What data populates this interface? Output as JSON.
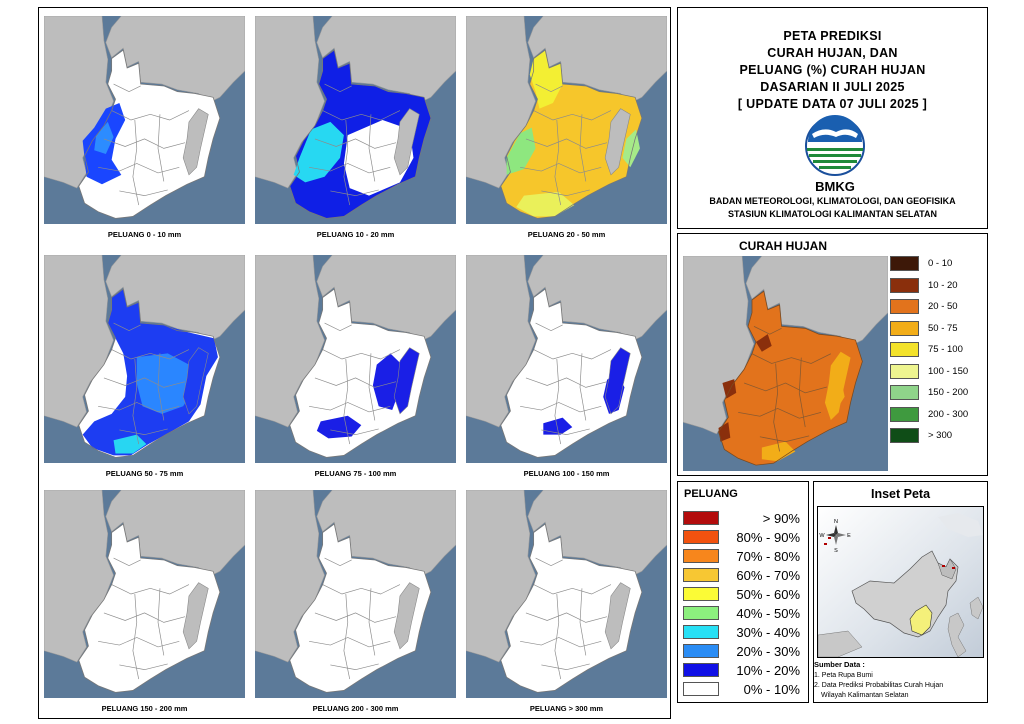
{
  "header": {
    "title_lines": [
      "PETA PREDIKSI",
      "CURAH HUJAN, DAN",
      "PELUANG (%) CURAH HUJAN",
      "DASARIAN II JULI 2025",
      "[ UPDATE DATA 07 JULI 2025 ]"
    ],
    "logo_text": "BMKG",
    "agency_lines": [
      "BADAN METEOROLOGI, KLIMATOLOGI, DAN GEOFISIKA",
      "STASIUN KLIMATOLOGI KALIMANTAN SELATAN"
    ]
  },
  "maps": [
    {
      "caption": "PELUANG 0 - 10 mm",
      "layers": [
        {
          "shape": "w-strip",
          "color": "#1a46ff"
        },
        {
          "shape": "w-patch",
          "color": "#2c8cff"
        }
      ]
    },
    {
      "caption": "PELUANG 10 - 20 mm",
      "layers": [
        {
          "shape": "full",
          "color": "#0f1fe6"
        },
        {
          "shape": "w-cyan",
          "color": "#27d8f2"
        },
        {
          "shape": "c-white",
          "color": "#ffffff"
        }
      ]
    },
    {
      "caption": "PELUANG 20 - 50 mm",
      "layers": [
        {
          "shape": "full",
          "color": "#f6c62b"
        },
        {
          "shape": "n-yellow",
          "color": "#f3ef33"
        },
        {
          "shape": "w-green",
          "color": "#8ee77f"
        },
        {
          "shape": "s-yellow",
          "color": "#eaf05a"
        },
        {
          "shape": "e-green",
          "color": "#a6ea88"
        }
      ]
    },
    {
      "caption": "PELUANG 50 - 75 mm",
      "layers": [
        {
          "shape": "blue-main",
          "color": "#1d3df2"
        },
        {
          "shape": "blue-mid",
          "color": "#2a86ff"
        },
        {
          "shape": "s-cyan",
          "color": "#28d6f2"
        }
      ]
    },
    {
      "caption": "PELUANG 75 - 100 mm",
      "layers": [
        {
          "shape": "e-patch",
          "color": "#1a1fe6"
        },
        {
          "shape": "s-patch",
          "color": "#1a1fe6"
        }
      ]
    },
    {
      "caption": "PELUANG 100 - 150 mm",
      "layers": [
        {
          "shape": "e-patch-s",
          "color": "#1a1fe6"
        },
        {
          "shape": "s-patch-s",
          "color": "#1a1fe6"
        }
      ]
    },
    {
      "caption": "PELUANG 150 - 200 mm",
      "layers": []
    },
    {
      "caption": "PELUANG 200 - 300 mm",
      "layers": []
    },
    {
      "caption": "PELUANG > 300 mm",
      "layers": []
    }
  ],
  "curah_hujan": {
    "title": "CURAH HUJAN",
    "legend": [
      {
        "label": "0 - 10",
        "color": "#3d1808"
      },
      {
        "label": "10 - 20",
        "color": "#8a2f0c"
      },
      {
        "label": "20 - 50",
        "color": "#e2731c"
      },
      {
        "label": "50 - 75",
        "color": "#f2ad18"
      },
      {
        "label": "75 - 100",
        "color": "#f3e22a"
      },
      {
        "label": "100 - 150",
        "color": "#eef590"
      },
      {
        "label": "150 - 200",
        "color": "#8fd48a"
      },
      {
        "label": "200 - 300",
        "color": "#3f9a3f"
      },
      {
        "label": "> 300",
        "color": "#0f4d17"
      }
    ]
  },
  "peluang": {
    "title": "PELUANG",
    "legend": [
      {
        "label": "> 90%",
        "color": "#b30c0c"
      },
      {
        "label": "80% - 90%",
        "color": "#f2520f"
      },
      {
        "label": "70% - 80%",
        "color": "#f7861c"
      },
      {
        "label": "60% - 70%",
        "color": "#f7c733"
      },
      {
        "label": "50% - 60%",
        "color": "#fbfb36"
      },
      {
        "label": "40% - 50%",
        "color": "#8cf07e"
      },
      {
        "label": "30% - 40%",
        "color": "#27e0f5"
      },
      {
        "label": "20% - 30%",
        "color": "#2a8cf4"
      },
      {
        "label": "10% - 20%",
        "color": "#1010e6"
      },
      {
        "label": "0% - 10%",
        "color": "#ffffff"
      }
    ]
  },
  "inset": {
    "title": "Inset Peta",
    "compass": {
      "n": "N",
      "s": "S",
      "e": "E",
      "w": "W"
    },
    "source_title": "Sumber Data :",
    "source_lines": [
      "1. Peta Rupa Bumi",
      "2. Data Prediksi Probabilitas Curah Hujan",
      "Wilayah Kalimantan Selatan"
    ]
  },
  "colors": {
    "sea": "#5c7a99",
    "land_outside": "#bdbdbd",
    "region": "#ffffff",
    "border": "#8c8c8c"
  }
}
